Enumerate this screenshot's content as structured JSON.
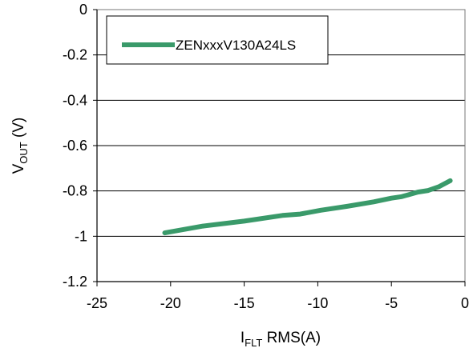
{
  "chart_data": {
    "type": "line",
    "title": "",
    "xlabel": {
      "main": "I",
      "sub": "FLT",
      "rest": " RMS(A)"
    },
    "ylabel": {
      "main": "V",
      "sub": "OUT",
      "rest": " (V)"
    },
    "xlim": [
      -25,
      0
    ],
    "ylim": [
      -1.2,
      0
    ],
    "xticks": [
      -25,
      -20,
      -15,
      -10,
      -5,
      0
    ],
    "yticks": [
      0,
      -0.2,
      -0.4,
      -0.6,
      -0.8,
      -1,
      -1.2
    ],
    "xtick_labels": [
      "-25",
      "-20",
      "-15",
      "-10",
      "-5",
      "0"
    ],
    "ytick_labels": [
      "0",
      "-0.2",
      "-0.4",
      "-0.6",
      "-0.8",
      "-1",
      "-1.2"
    ],
    "grid": "horizontal",
    "legend_position": "top-left",
    "series": [
      {
        "name": "ZENxxxV130A24LS",
        "color": "#3a9a6a",
        "x": [
          -20.4,
          -17.8,
          -15.0,
          -12.4,
          -11.2,
          -9.8,
          -8.0,
          -6.2,
          -5.0,
          -4.3,
          -3.2,
          -2.5,
          -1.8,
          -1.0
        ],
        "y": [
          -0.985,
          -0.955,
          -0.933,
          -0.908,
          -0.902,
          -0.885,
          -0.868,
          -0.848,
          -0.832,
          -0.825,
          -0.805,
          -0.798,
          -0.782,
          -0.755
        ]
      }
    ]
  }
}
